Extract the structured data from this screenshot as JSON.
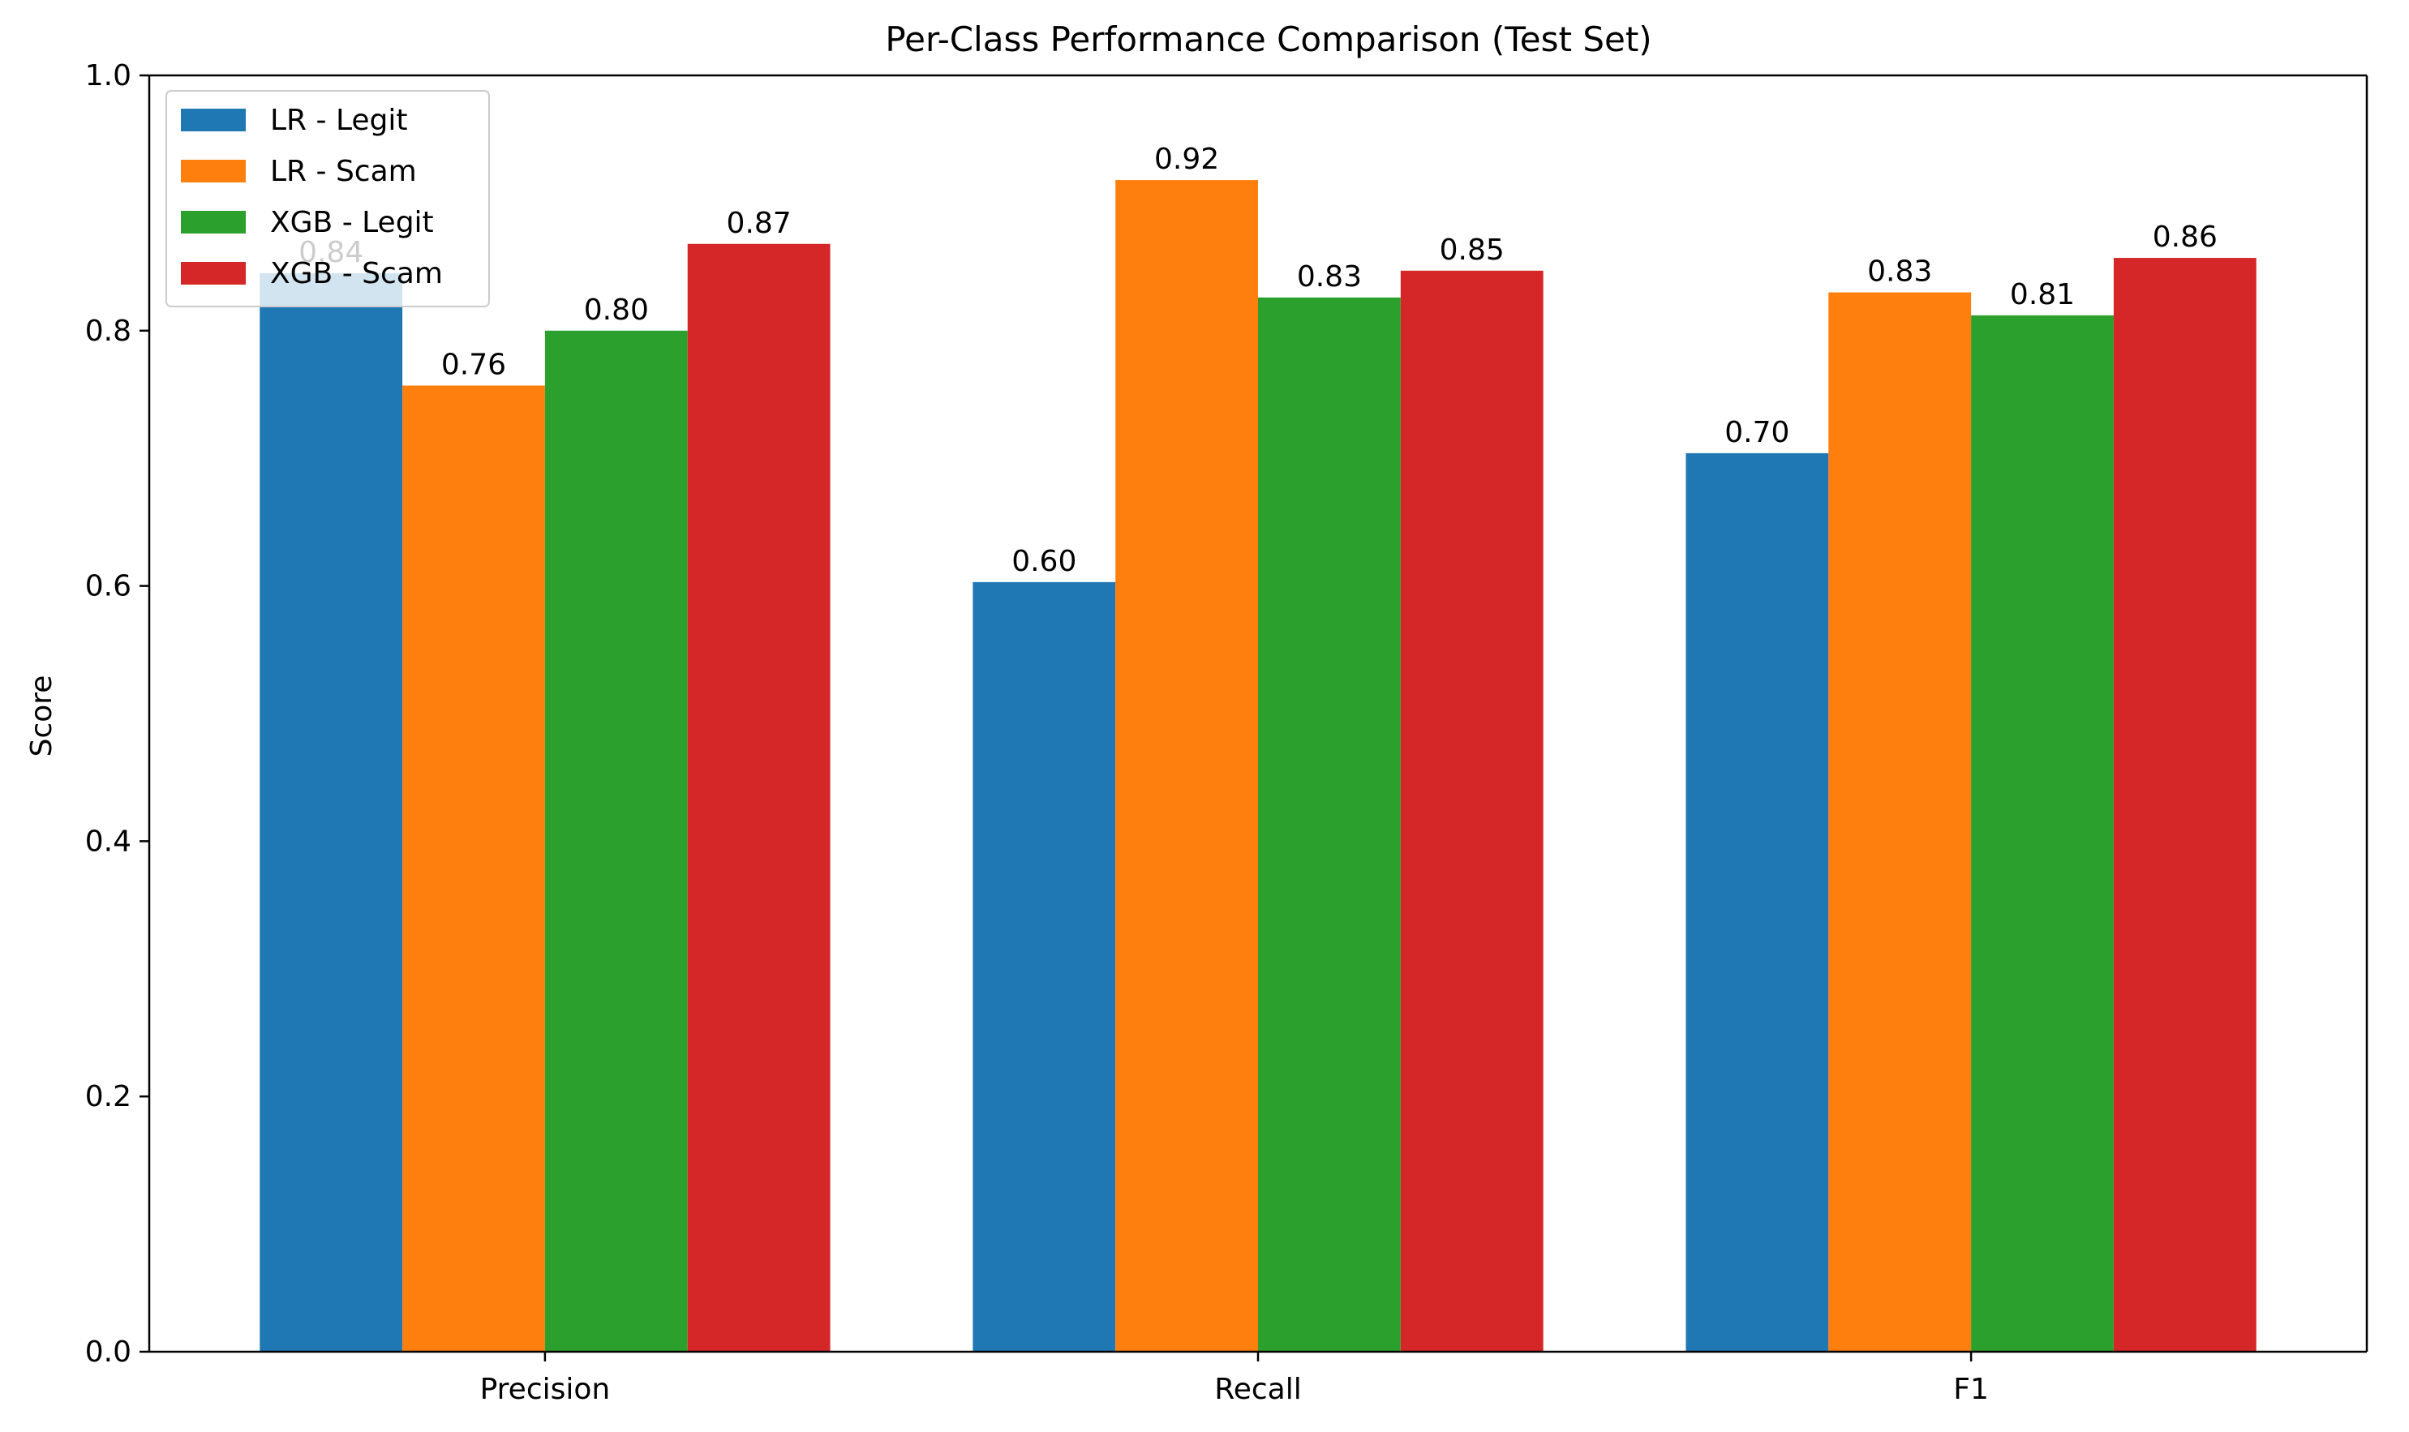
{
  "chart_data": {
    "type": "bar",
    "title": "Per-Class Performance Comparison (Test Set)",
    "xlabel": "",
    "ylabel": "Score",
    "ylim": [
      0,
      1.0
    ],
    "yticks": [
      0.0,
      0.2,
      0.4,
      0.6,
      0.8,
      1.0
    ],
    "ytick_labels": [
      "0.0",
      "0.2",
      "0.4",
      "0.6",
      "0.8",
      "1.0"
    ],
    "categories": [
      "Precision",
      "Recall",
      "F1"
    ],
    "series": [
      {
        "name": "LR - Legit",
        "color": "#1f77b4",
        "values": [
          0.845,
          0.603,
          0.704
        ],
        "labels": [
          "0.84",
          "0.60",
          "0.70"
        ]
      },
      {
        "name": "LR - Scam",
        "color": "#ff7f0e",
        "values": [
          0.757,
          0.918,
          0.83
        ],
        "labels": [
          "0.76",
          "0.92",
          "0.83"
        ]
      },
      {
        "name": "XGB - Legit",
        "color": "#2ca02c",
        "values": [
          0.8,
          0.826,
          0.812
        ],
        "labels": [
          "0.80",
          "0.83",
          "0.81"
        ]
      },
      {
        "name": "XGB - Scam",
        "color": "#d62728",
        "values": [
          0.868,
          0.847,
          0.857
        ],
        "labels": [
          "0.87",
          "0.85",
          "0.86"
        ]
      }
    ],
    "legend_position": "top-left",
    "grid": false
  }
}
